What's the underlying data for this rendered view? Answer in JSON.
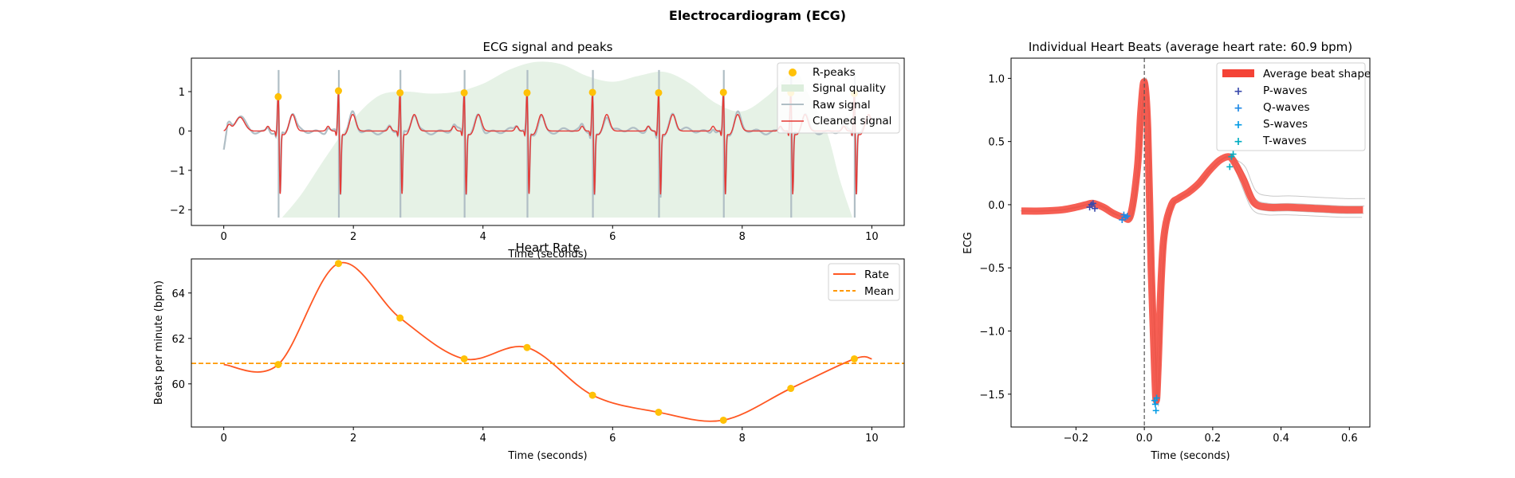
{
  "figure": {
    "title": "Electrocardiogram (ECG)"
  },
  "colors": {
    "rpeaks": "#FFC107",
    "quality": "#DDEEDD",
    "raw": "#B0BEC5",
    "cleaned": "#E53935",
    "rate": "#FF5722",
    "mean": "#FF9800",
    "avg_beat": "#F44336",
    "individual_beats": "#C8C8C8",
    "p_waves": "#3949AB",
    "q_waves": "#1E88E5",
    "s_waves": "#039BE5",
    "t_waves": "#00ACC1"
  },
  "chart_data": [
    {
      "type": "line",
      "title": "ECG signal and peaks",
      "xlabel": "Time (seconds)",
      "ylabel": "",
      "xlim": [
        -0.5,
        10.5
      ],
      "ylim": [
        -2.4,
        1.85
      ],
      "xticks": [
        0,
        2,
        4,
        6,
        8,
        10
      ],
      "xtick_labels": [
        "0",
        "2",
        "4",
        "6",
        "8",
        "10"
      ],
      "yticks": [
        1,
        0,
        -1,
        -2
      ],
      "ytick_labels": [
        "1",
        "0",
        "−1",
        "−2"
      ],
      "legend_position": "top-right",
      "legend": [
        "R-peaks",
        "Signal quality",
        "Raw signal",
        "Cleaned signal"
      ],
      "r_peaks": {
        "x": [
          0.84,
          1.77,
          2.72,
          3.71,
          4.68,
          5.69,
          6.71,
          7.71,
          8.75,
          9.73
        ],
        "y": [
          0.87,
          1.02,
          0.97,
          0.97,
          0.97,
          0.98,
          0.97,
          0.98,
          0.97,
          0.95
        ]
      },
      "signal_quality": {
        "x": [
          0.9,
          1.2,
          1.6,
          2.0,
          2.4,
          2.8,
          3.2,
          3.6,
          4.0,
          4.4,
          4.8,
          5.2,
          5.6,
          6.0,
          6.4,
          6.8,
          7.2,
          7.6,
          8.0,
          8.4,
          8.8,
          9.0,
          9.3,
          9.5,
          9.7
        ],
        "y": [
          -2.2,
          -1.6,
          -0.6,
          0.3,
          0.9,
          1.0,
          0.95,
          1.0,
          1.2,
          1.55,
          1.75,
          1.7,
          1.4,
          1.25,
          1.4,
          1.5,
          1.2,
          0.7,
          0.5,
          0.9,
          1.5,
          1.0,
          0.0,
          -1.2,
          -2.2
        ]
      }
    },
    {
      "type": "line",
      "title": "Heart Rate",
      "xlabel": "Time (seconds)",
      "ylabel": "Beats per minute (bpm)",
      "xlim": [
        -0.5,
        10.5
      ],
      "ylim": [
        58.1,
        65.5
      ],
      "xticks": [
        0,
        2,
        4,
        6,
        8,
        10
      ],
      "xtick_labels": [
        "0",
        "2",
        "4",
        "6",
        "8",
        "10"
      ],
      "yticks": [
        60,
        62,
        64
      ],
      "ytick_labels": [
        "60",
        "62",
        "64"
      ],
      "legend_position": "top-right",
      "legend": [
        "Rate",
        "Mean"
      ],
      "mean": 60.9,
      "points": {
        "x": [
          0.84,
          1.77,
          2.72,
          3.71,
          4.68,
          5.69,
          6.71,
          7.71,
          8.75,
          9.73
        ],
        "y": [
          60.85,
          65.3,
          62.9,
          61.1,
          61.6,
          59.5,
          58.75,
          58.4,
          59.8,
          61.1
        ]
      }
    },
    {
      "type": "line",
      "title": "Individual Heart Beats (average heart rate: 60.9 bpm)",
      "xlabel": "Time (seconds)",
      "ylabel": "ECG",
      "xlim": [
        -0.39,
        0.66
      ],
      "ylim": [
        -1.76,
        1.16
      ],
      "xticks": [
        -0.2,
        0.0,
        0.2,
        0.4,
        0.6
      ],
      "xtick_labels": [
        "−0.2",
        "0.0",
        "0.2",
        "0.4",
        "0.6"
      ],
      "yticks": [
        1.0,
        0.5,
        0.0,
        -0.5,
        -1.0,
        -1.5
      ],
      "ytick_labels": [
        "1.0",
        "0.5",
        "0.0",
        "−0.5",
        "−1.0",
        "−1.5"
      ],
      "legend_position": "top-right",
      "legend": [
        "Average beat shape",
        "P-waves",
        "Q-waves",
        "S-waves",
        "T-waves"
      ],
      "average_beat": {
        "x": [
          -0.36,
          -0.3,
          -0.24,
          -0.2,
          -0.17,
          -0.15,
          -0.12,
          -0.09,
          -0.06,
          -0.04,
          -0.02,
          -0.01,
          0.0,
          0.01,
          0.02,
          0.03,
          0.035,
          0.04,
          0.05,
          0.06,
          0.08,
          0.1,
          0.13,
          0.16,
          0.19,
          0.22,
          0.245,
          0.26,
          0.29,
          0.32,
          0.36,
          0.42,
          0.5,
          0.58,
          0.64
        ],
        "y": [
          -0.05,
          -0.05,
          -0.04,
          -0.02,
          0.0,
          0.01,
          -0.02,
          -0.07,
          -0.1,
          -0.08,
          0.3,
          0.75,
          0.97,
          0.6,
          -0.5,
          -1.3,
          -1.55,
          -1.3,
          -0.55,
          -0.2,
          0.0,
          0.05,
          0.1,
          0.17,
          0.27,
          0.35,
          0.38,
          0.35,
          0.2,
          0.02,
          -0.02,
          -0.02,
          -0.03,
          -0.04,
          -0.04
        ]
      },
      "p_waves": {
        "x": [
          -0.155,
          -0.15,
          -0.145,
          -0.16
        ],
        "y": [
          0.0,
          0.01,
          -0.03,
          -0.02
        ]
      },
      "q_waves": {
        "x": [
          -0.06,
          -0.055,
          -0.065,
          -0.05
        ],
        "y": [
          -0.08,
          -0.1,
          -0.12,
          -0.09
        ]
      },
      "s_waves": {
        "x": [
          0.03,
          0.032,
          0.034,
          0.036
        ],
        "y": [
          -1.55,
          -1.58,
          -1.63,
          -1.53
        ]
      },
      "t_waves": {
        "x": [
          0.255,
          0.26,
          0.25
        ],
        "y": [
          0.38,
          0.4,
          0.3
        ]
      }
    }
  ]
}
